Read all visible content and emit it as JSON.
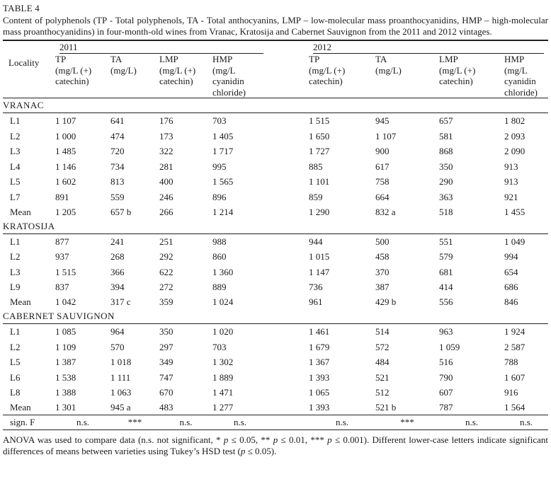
{
  "table_label": "TABLE 4",
  "caption": "Content of polyphenols (TP - Total polyphenols, TA - Total anthocyanins, LMP – low-molecular mass proanthocyanidins, HMP – high-molecular mass proanthocyanidins) in four-month-old wines from Vranac, Kratosija and Cabernet Sauvignon from the 2011 and 2012 vintages.",
  "years": [
    "2011",
    "2012"
  ],
  "headers": {
    "locality": "Locality",
    "cols": [
      [
        "TP",
        "(mg/L (+)",
        "catechin)"
      ],
      [
        "TA",
        "(mg/L)"
      ],
      [
        "LMP",
        "(mg/L (+)",
        "catechin)"
      ],
      [
        "HMP",
        "(mg/L",
        "cyanidin",
        "chloride)"
      ],
      [
        "TP",
        "(mg/L (+)",
        "catechin)"
      ],
      [
        "TA",
        "(mg/L)"
      ],
      [
        "LMP",
        "(mg/L (+)",
        "catechin)"
      ],
      [
        "HMP",
        "(mg/L",
        "cyanidin",
        "chloride)"
      ]
    ]
  },
  "groups": [
    {
      "name": "VRANAC",
      "rows": [
        [
          "L1",
          "1 107",
          "641",
          "176",
          "703",
          "1 515",
          "945",
          "657",
          "1 802"
        ],
        [
          "L2",
          "1 000",
          "474",
          "173",
          "1 405",
          "1 650",
          "1 107",
          "581",
          "2 093"
        ],
        [
          "L3",
          "1 485",
          "720",
          "322",
          "1 717",
          "1 727",
          "900",
          "868",
          "2 090"
        ],
        [
          "L4",
          "1 146",
          "734",
          "281",
          "995",
          "885",
          "617",
          "350",
          "913"
        ],
        [
          "L5",
          "1 602",
          "813",
          "400",
          "1 565",
          "1 101",
          "758",
          "290",
          "913"
        ],
        [
          "L7",
          "891",
          "559",
          "246",
          "896",
          "859",
          "664",
          "363",
          "921"
        ]
      ],
      "mean": [
        "Mean",
        "1 205",
        "657 b",
        "266",
        "1 214",
        "1 290",
        "832 a",
        "518",
        "1 455"
      ]
    },
    {
      "name": "KRATOSIJA",
      "rows": [
        [
          "L1",
          "877",
          "241",
          "251",
          "988",
          "944",
          "500",
          "551",
          "1 049"
        ],
        [
          "L2",
          "937",
          "268",
          "292",
          "860",
          "1 015",
          "458",
          "579",
          "994"
        ],
        [
          "L3",
          "1 515",
          "366",
          "622",
          "1 360",
          "1 147",
          "370",
          "681",
          "654"
        ],
        [
          "L9",
          "837",
          "394",
          "272",
          "889",
          "736",
          "387",
          "414",
          "686"
        ]
      ],
      "mean": [
        "Mean",
        "1 042",
        "317 c",
        "359",
        "1 024",
        "961",
        "429 b",
        "556",
        "846"
      ]
    },
    {
      "name": "CABERNET SAUVIGNON",
      "rows": [
        [
          "L1",
          "1 085",
          "964",
          "350",
          "1 020",
          "1 461",
          "514",
          "963",
          "1 924"
        ],
        [
          "L2",
          "1 109",
          "570",
          "297",
          "703",
          "1 679",
          "572",
          "1 059",
          "2 587"
        ],
        [
          "L5",
          "1 387",
          "1 018",
          "349",
          "1 302",
          "1 367",
          "484",
          "516",
          "788"
        ],
        [
          "L6",
          "1 538",
          "1 111",
          "747",
          "1 889",
          "1 393",
          "521",
          "790",
          "1 607"
        ],
        [
          "L8",
          "1 388",
          "1 063",
          "670",
          "1 471",
          "1 065",
          "512",
          "607",
          "916"
        ]
      ],
      "mean": [
        "Mean",
        "1 301",
        "945 a",
        "483",
        "1 277",
        "1 393",
        "521 b",
        "787",
        "1 564"
      ]
    }
  ],
  "sign_row": [
    "sign. F",
    "n.s.",
    "***",
    "n.s.",
    "n.s.",
    "n.s.",
    "***",
    "n.s.",
    "n.s."
  ],
  "footnote": {
    "part1": "ANOVA was used to compare data (n.s. not significant, * ",
    "p": "p",
    "part2": " ≤ 0.05, ** ",
    "part3": " ≤ 0.01, *** ",
    "part4": " ≤ 0.001). Different lower-case letters indicate significant differences of means between varieties using Tukey’s HSD test (",
    "part5": " ≤ 0.05)."
  }
}
